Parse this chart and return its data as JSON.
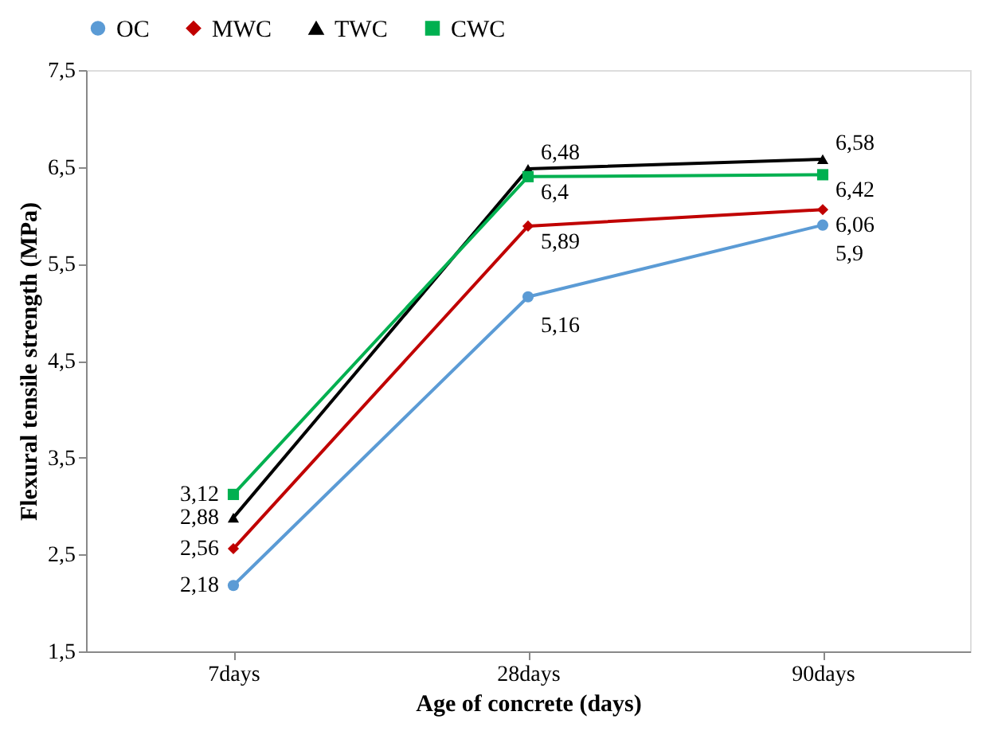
{
  "chart_data": {
    "type": "line",
    "xlabel": "Age of concrete (days)",
    "ylabel": "Flexural tensile strength (MPa)",
    "categories": [
      "7days",
      "28days",
      "90days"
    ],
    "series": [
      {
        "name": "OC",
        "color": "#5b9bd5",
        "marker": "circle",
        "values": [
          2.18,
          5.16,
          5.9
        ],
        "value_labels": [
          "2,18",
          "5,16",
          "5,9"
        ]
      },
      {
        "name": "MWC",
        "color": "#c00000",
        "marker": "diamond",
        "values": [
          2.56,
          5.89,
          6.06
        ],
        "value_labels": [
          "2,56",
          "5,89",
          "6,06"
        ]
      },
      {
        "name": "TWC",
        "color": "#000000",
        "marker": "triangle",
        "values": [
          2.88,
          6.48,
          6.58
        ],
        "value_labels": [
          "2,88",
          "6,48",
          "6,58"
        ]
      },
      {
        "name": "CWC",
        "color": "#00b050",
        "marker": "square",
        "values": [
          3.12,
          6.4,
          6.42
        ],
        "value_labels": [
          "3,12",
          "6,4",
          "6,42"
        ]
      }
    ],
    "ylim": [
      1.5,
      7.5
    ],
    "yticks": [
      {
        "value": 1.5,
        "label": "1,5"
      },
      {
        "value": 2.5,
        "label": "2,5"
      },
      {
        "value": 3.5,
        "label": "3,5"
      },
      {
        "value": 4.5,
        "label": "4,5"
      },
      {
        "value": 5.5,
        "label": "5,5"
      },
      {
        "value": 6.5,
        "label": "6,5"
      },
      {
        "value": 7.5,
        "label": "7,5"
      }
    ],
    "grid": false,
    "legend": "top",
    "line_style": "solid"
  }
}
